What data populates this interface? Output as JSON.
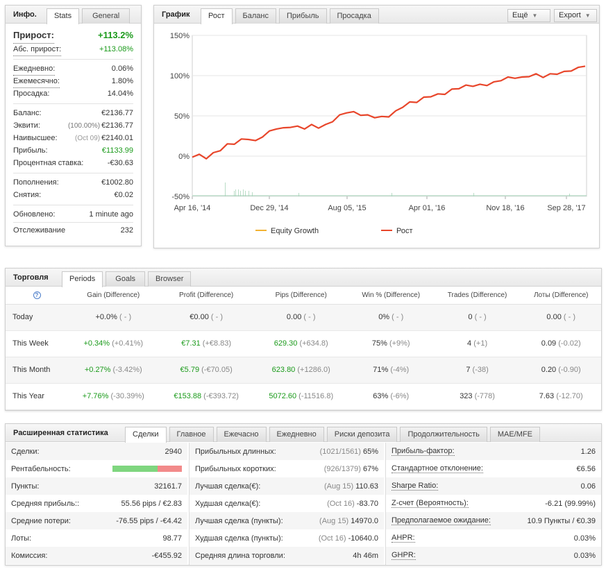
{
  "info": {
    "title": "Инфо.",
    "tabs": [
      "Stats",
      "General"
    ],
    "growth_label": "Прирост:",
    "growth_value": "+113.2%",
    "abs_label": "Абс. прирост:",
    "abs_value": "+113.08%",
    "daily_label": "Ежедневно:",
    "daily_value": "0.06%",
    "monthly_label": "Ежемесячно:",
    "monthly_value": "1.80%",
    "dd_label": "Просадка:",
    "dd_value": "14.04%",
    "balance_label": "Баланс:",
    "balance_value": "€2136.77",
    "equity_label": "Эквити:",
    "equity_pct": "(100.00%)",
    "equity_value": "€2136.77",
    "highest_label": "Наивысшее:",
    "highest_date": "(Oct 09)",
    "highest_value": "€2140.01",
    "profit_label": "Прибыль:",
    "profit_value": "€1133.99",
    "interest_label": "Процентная ставка:",
    "interest_value": "-€30.63",
    "deposits_label": "Пополнения:",
    "deposits_value": "€1002.80",
    "withdrawals_label": "Снятия:",
    "withdrawals_value": "€0.02",
    "updated_label": "Обновлено:",
    "updated_value": "1 minute ago",
    "tracking_label": "Отслеживание",
    "tracking_value": "232"
  },
  "chart_panel": {
    "title": "График",
    "tabs": [
      "Рост",
      "Баланс",
      "Прибыль",
      "Просадка"
    ],
    "more_label": "Ещё",
    "export_label": "Export"
  },
  "chart_data": {
    "type": "line",
    "y_ticks": [
      "150%",
      "100%",
      "50%",
      "0%",
      "-50%"
    ],
    "x_ticks": [
      "Apr 16, '14",
      "Dec 29, '14",
      "Aug 05, '15",
      "Apr 01, '16",
      "Nov 18, '16",
      "Sep 28, '17"
    ],
    "ylim": [
      -50,
      150
    ],
    "series": [
      {
        "name": "Equity Growth",
        "color": "#f2b233",
        "values": []
      },
      {
        "name": "Рост",
        "color": "#e8462b",
        "values": [
          0,
          1,
          -2,
          3,
          8,
          14,
          16,
          20,
          22,
          18,
          25,
          30,
          35,
          34,
          37,
          36,
          35,
          38,
          36,
          38,
          44,
          50,
          55,
          54,
          52,
          50,
          49,
          48,
          50,
          55,
          62,
          66,
          68,
          72,
          75,
          76,
          78,
          82,
          85,
          87,
          88,
          88,
          89,
          91,
          95,
          97,
          98,
          97,
          100,
          101,
          99,
          101,
          103,
          104,
          107,
          109,
          113
        ]
      }
    ]
  },
  "trading": {
    "title": "Торговля",
    "tabs": [
      "Periods",
      "Goals",
      "Browser"
    ],
    "headers": [
      "Gain (Difference)",
      "Profit (Difference)",
      "Pips (Difference)",
      "Win % (Difference)",
      "Trades (Difference)",
      "Лоты (Difference)"
    ],
    "rows": [
      {
        "label": "Today",
        "gain": "+0.0%",
        "gain_d": "( - )",
        "profit": "€0.00",
        "profit_d": "( - )",
        "pips": "0.00",
        "pips_d": "( - )",
        "win": "0%",
        "win_d": "( - )",
        "trades": "0",
        "trades_d": "( - )",
        "lots": "0.00",
        "lots_d": "( - )"
      },
      {
        "label": "This Week",
        "gain": "+0.34%",
        "gain_d": "(+0.41%)",
        "profit": "€7.31",
        "profit_d": "(+€8.83)",
        "pips": "629.30",
        "pips_d": "(+634.8)",
        "win": "75%",
        "win_d": "(+9%)",
        "trades": "4",
        "trades_d": "(+1)",
        "lots": "0.09",
        "lots_d": "(-0.02)"
      },
      {
        "label": "This Month",
        "gain": "+0.27%",
        "gain_d": "(-3.42%)",
        "profit": "€5.79",
        "profit_d": "(-€70.05)",
        "pips": "623.80",
        "pips_d": "(+1286.0)",
        "win": "71%",
        "win_d": "(-4%)",
        "trades": "7",
        "trades_d": "(-38)",
        "lots": "0.20",
        "lots_d": "(-0.90)"
      },
      {
        "label": "This Year",
        "gain": "+7.76%",
        "gain_d": "(-30.39%)",
        "profit": "€153.88",
        "profit_d": "(-€393.72)",
        "pips": "5072.60",
        "pips_d": "(-11516.8)",
        "win": "63%",
        "win_d": "(-6%)",
        "trades": "323",
        "trades_d": "(-778)",
        "lots": "7.63",
        "lots_d": "(-12.70)"
      }
    ]
  },
  "ext": {
    "title": "Расширенная статистика",
    "tabs": [
      "Сделки",
      "Главное",
      "Ежечасно",
      "Ежедневно",
      "Риски депозита",
      "Продолжительность",
      "MAE/MFE"
    ],
    "col1": [
      {
        "label": "Сделки:",
        "value": "2940"
      },
      {
        "label": "Рентабельность:",
        "bar_green": 0.65,
        "bar_colors": [
          "#7fd67f",
          "#f28a8a"
        ]
      },
      {
        "label": "Пункты:",
        "value": "32161.7"
      },
      {
        "label": "Средняя прибыль::",
        "value": "55.56 pips / €2.83"
      },
      {
        "label": "Средние потери:",
        "value": "-76.55 pips / -€4.42"
      },
      {
        "label": "Лоты:",
        "value": "98.77"
      },
      {
        "label": "Комиссия:",
        "value": "-€455.92"
      }
    ],
    "col2": [
      {
        "label": "Прибыльных длинных:",
        "note": "(1021/1561)",
        "value": "65%"
      },
      {
        "label": "Прибыльных коротких:",
        "note": "(926/1379)",
        "value": "67%"
      },
      {
        "label": "Лучшая сделка(€):",
        "note": "(Aug 15)",
        "value": "110.63"
      },
      {
        "label": "Худшая сделка(€):",
        "note": "(Oct 16)",
        "value": "-83.70"
      },
      {
        "label": "Лучшая сделка (пункты):",
        "note": "(Aug 15)",
        "value": "14970.0"
      },
      {
        "label": "Худшая сделка (пункты):",
        "note": "(Oct 16)",
        "value": "-10640.0"
      },
      {
        "label": "Средняя длина торговли:",
        "note": "",
        "value": "4h 46m"
      }
    ],
    "col3": [
      {
        "label": "Прибыль-фактор:",
        "value": "1.26"
      },
      {
        "label": "Стандартное отклонение:",
        "value": "€6.56"
      },
      {
        "label": "Sharpe Ratio:",
        "value": "0.06"
      },
      {
        "label": "Z-счет (Вероятность):",
        "value": "-6.21 (99.99%)"
      },
      {
        "label": "Предполагаемое ожидание:",
        "value": "10.9 Пункты / €0.39"
      },
      {
        "label": "AHPR:",
        "value": "0.03%"
      },
      {
        "label": "GHPR:",
        "value": "0.03%"
      }
    ]
  }
}
